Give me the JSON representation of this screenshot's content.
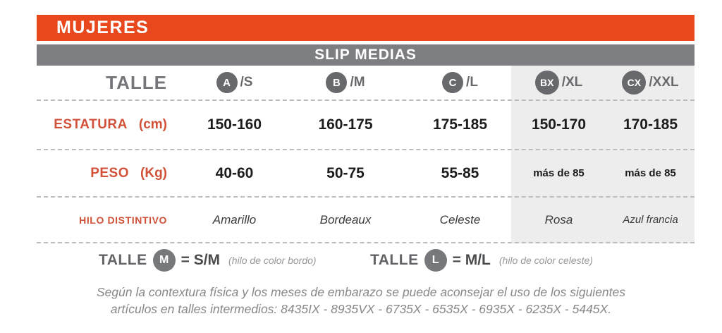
{
  "header": {
    "title": "MUJERES",
    "subtitle": "SLIP MEDIAS"
  },
  "table": {
    "corner_label": "TALLE",
    "sizes": [
      {
        "letter": "A",
        "suffix": "/S"
      },
      {
        "letter": "B",
        "suffix": "/M"
      },
      {
        "letter": "C",
        "suffix": "/L"
      },
      {
        "letter": "BX",
        "suffix": "/XL"
      },
      {
        "letter": "CX",
        "suffix": "/XXL"
      }
    ],
    "rows": [
      {
        "label": "ESTATURA",
        "unit": "(cm)",
        "values": [
          "150-160",
          "160-175",
          "175-185",
          "150-170",
          "170-185"
        ]
      },
      {
        "label": "PESO",
        "unit": "(Kg)",
        "values": [
          "40-60",
          "50-75",
          "55-85",
          "más de 85",
          "más de 85"
        ]
      },
      {
        "label": "HILO DISTINTIVO",
        "unit": "",
        "values": [
          "Amarillo",
          "Bordeaux",
          "Celeste",
          "Rosa",
          "Azul francia"
        ]
      }
    ]
  },
  "size_notes": [
    {
      "prefix": "TALLE",
      "circle": "M",
      "equals": "= S/M",
      "detail": "(hilo de color bordo)"
    },
    {
      "prefix": "TALLE",
      "circle": "L",
      "equals": "= M/L",
      "detail": "(hilo de color celeste)"
    }
  ],
  "footnote": {
    "line1": "Según la contextura física y los meses de embarazo se puede aconsejar el uso de los siguientes",
    "line2": "artículos en talles intermedios: 8435IX - 8935VX - 6735X - 6535X - 6935X - 6235X - 5445X."
  },
  "colors": {
    "brand_orange": "#e8481c",
    "bar_gray": "#7d7e82",
    "circle_gray": "#68696c",
    "label_orange": "#d15139",
    "xl_column_background": "#ededee"
  }
}
